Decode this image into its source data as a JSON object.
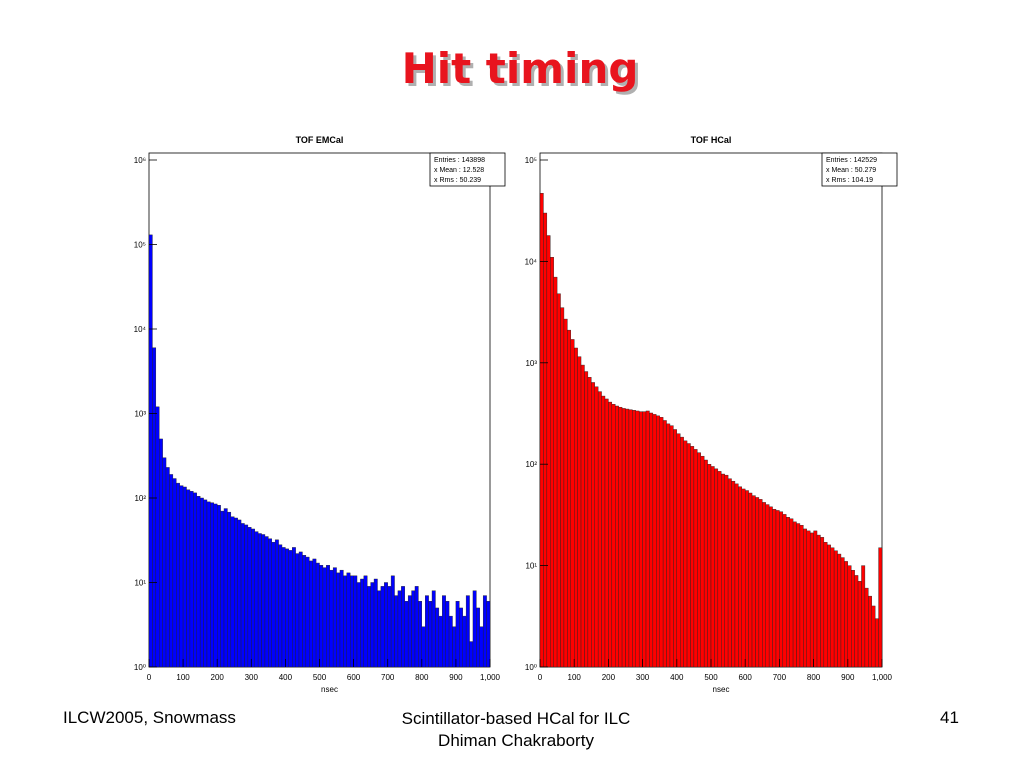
{
  "slide": {
    "title": "Hit timing",
    "footer_left": "ILCW2005, Snowmass",
    "footer_center": [
      "Scintillator-based HCal for ILC",
      "Dhiman Chakraborty"
    ],
    "page_number": "41"
  },
  "chart_data": [
    {
      "type": "histogram",
      "title": "TOF EMCal",
      "xlabel": "nsec",
      "color": "#0000ff",
      "log_y": true,
      "stats": [
        "Entries : 143898",
        "x Mean : 12.528",
        "x Rms :   50.239"
      ],
      "bins": [
        0,
        10,
        20,
        30,
        40,
        50,
        60,
        70,
        80,
        90,
        100,
        110,
        120,
        130,
        140,
        150,
        160,
        170,
        180,
        190,
        200,
        210,
        220,
        230,
        240,
        250,
        260,
        270,
        280,
        290,
        300,
        310,
        320,
        330,
        340,
        350,
        360,
        370,
        380,
        390,
        400,
        410,
        420,
        430,
        440,
        450,
        460,
        470,
        480,
        490,
        500,
        510,
        520,
        530,
        540,
        550,
        560,
        570,
        580,
        590,
        600,
        610,
        620,
        630,
        640,
        650,
        660,
        670,
        680,
        690,
        700,
        710,
        720,
        730,
        740,
        750,
        760,
        770,
        780,
        790,
        800,
        810,
        820,
        830,
        840,
        850,
        860,
        870,
        880,
        890,
        900,
        910,
        920,
        930,
        940,
        950,
        960,
        970,
        980,
        990,
        1000
      ],
      "values": [
        130000,
        6000,
        1200,
        500,
        300,
        230,
        190,
        170,
        150,
        140,
        135,
        125,
        120,
        115,
        105,
        100,
        95,
        90,
        88,
        85,
        82,
        70,
        75,
        68,
        60,
        58,
        55,
        50,
        48,
        45,
        43,
        40,
        38,
        37,
        35,
        33,
        30,
        32,
        28,
        26,
        25,
        24,
        26,
        22,
        23,
        21,
        20,
        18,
        19,
        17,
        16,
        15,
        16,
        14,
        15,
        13,
        14,
        12,
        13,
        12,
        12,
        10,
        11,
        12,
        9,
        10,
        11,
        8,
        9,
        10,
        9,
        12,
        7,
        8,
        9,
        6,
        7,
        8,
        9,
        6,
        3,
        7,
        6,
        8,
        5,
        4,
        7,
        6,
        4,
        3,
        6,
        5,
        4,
        7,
        2,
        8,
        5,
        3,
        7,
        6
      ],
      "xlim": [
        0,
        1000
      ],
      "xticks": [
        0,
        100,
        200,
        300,
        400,
        500,
        600,
        700,
        800,
        900,
        {
          "value": 1000,
          "label": "1,000"
        }
      ],
      "ylim": [
        1,
        1000000
      ],
      "yticks": [
        {
          "value": 1,
          "label": "10⁰"
        },
        {
          "value": 10,
          "label": "10¹"
        },
        {
          "value": 100,
          "label": "10²"
        },
        {
          "value": 1000,
          "label": "10³"
        },
        {
          "value": 10000,
          "label": "10⁴"
        },
        {
          "value": 100000,
          "label": "10⁵"
        },
        {
          "value": 1000000,
          "label": "10⁶"
        }
      ]
    },
    {
      "type": "histogram",
      "title": "TOF HCal",
      "xlabel": "nsec",
      "color": "#ff0000",
      "log_y": true,
      "stats": [
        "Entries : 142529",
        "x Mean : 50.279",
        "x Rms :   104.19"
      ],
      "bins": [
        0,
        10,
        20,
        30,
        40,
        50,
        60,
        70,
        80,
        90,
        100,
        110,
        120,
        130,
        140,
        150,
        160,
        170,
        180,
        190,
        200,
        210,
        220,
        230,
        240,
        250,
        260,
        270,
        280,
        290,
        300,
        310,
        320,
        330,
        340,
        350,
        360,
        370,
        380,
        390,
        400,
        410,
        420,
        430,
        440,
        450,
        460,
        470,
        480,
        490,
        500,
        510,
        520,
        530,
        540,
        550,
        560,
        570,
        580,
        590,
        600,
        610,
        620,
        630,
        640,
        650,
        660,
        670,
        680,
        690,
        700,
        710,
        720,
        730,
        740,
        750,
        760,
        770,
        780,
        790,
        800,
        810,
        820,
        830,
        840,
        850,
        860,
        870,
        880,
        890,
        900,
        910,
        920,
        930,
        940,
        950,
        960,
        970,
        980,
        990,
        1000
      ],
      "values": [
        47000,
        30000,
        18000,
        11000,
        7000,
        4800,
        3500,
        2700,
        2100,
        1700,
        1400,
        1150,
        950,
        820,
        720,
        640,
        580,
        520,
        470,
        440,
        410,
        390,
        375,
        365,
        355,
        350,
        345,
        340,
        335,
        330,
        330,
        335,
        320,
        310,
        300,
        290,
        270,
        250,
        240,
        220,
        200,
        185,
        170,
        160,
        150,
        140,
        130,
        120,
        110,
        100,
        95,
        90,
        85,
        80,
        78,
        72,
        68,
        64,
        60,
        57,
        55,
        52,
        49,
        47,
        45,
        42,
        40,
        38,
        36,
        35,
        34,
        32,
        30,
        29,
        27,
        26,
        25,
        23,
        22,
        21,
        22,
        20,
        19,
        17,
        16,
        15,
        14,
        13,
        12,
        11,
        10,
        9,
        8,
        7,
        10,
        6,
        5,
        4,
        3,
        15
      ],
      "xlim": [
        0,
        1000
      ],
      "xticks": [
        0,
        100,
        200,
        300,
        400,
        500,
        600,
        700,
        800,
        900,
        {
          "value": 1000,
          "label": "1,000"
        }
      ],
      "ylim": [
        1,
        100000
      ],
      "yticks": [
        {
          "value": 1,
          "label": "10⁰"
        },
        {
          "value": 10,
          "label": "10¹"
        },
        {
          "value": 100,
          "label": "10²"
        },
        {
          "value": 1000,
          "label": "10³"
        },
        {
          "value": 10000,
          "label": "10⁴"
        },
        {
          "value": 100000,
          "label": "10⁵"
        }
      ]
    }
  ]
}
